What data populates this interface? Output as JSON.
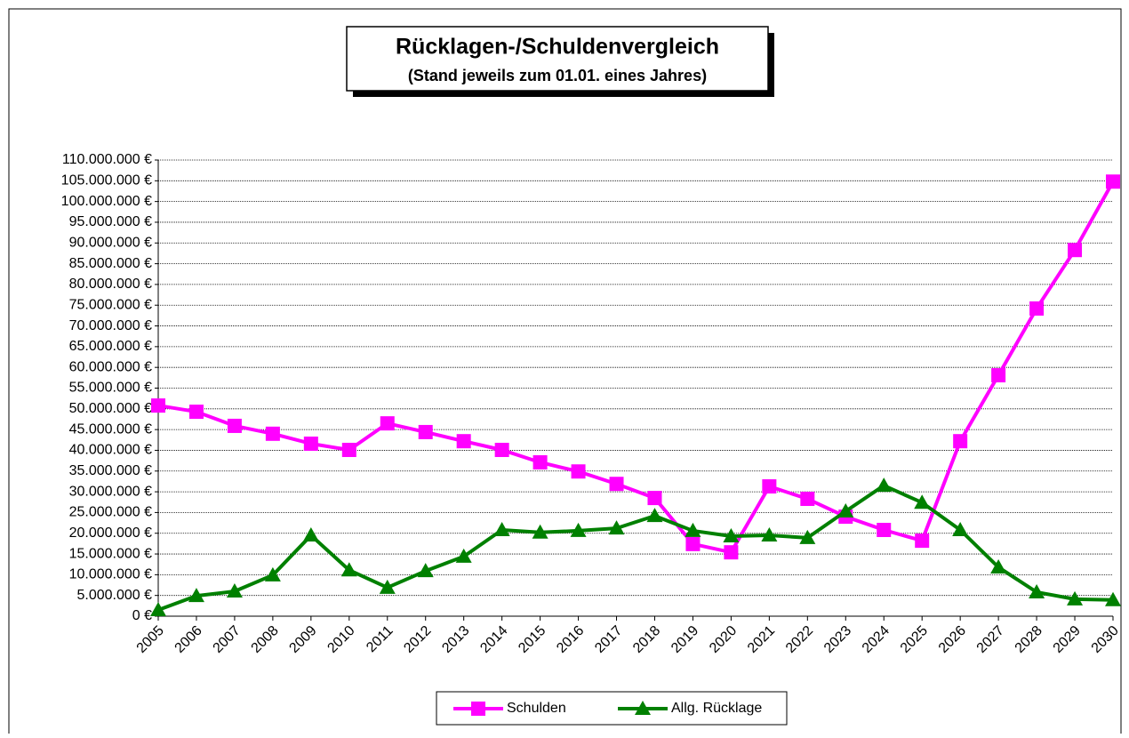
{
  "chart_data": {
    "type": "line",
    "title": "Rücklagen-/Schuldenvergleich",
    "subtitle": "(Stand jeweils zum 01.01. eines Jahres)",
    "categories": [
      "2005",
      "2006",
      "2007",
      "2008",
      "2009",
      "2010",
      "2011",
      "2012",
      "2013",
      "2014",
      "2015",
      "2016",
      "2017",
      "2018",
      "2019",
      "2020",
      "2021",
      "2022",
      "2023",
      "2024",
      "2025",
      "2026",
      "2027",
      "2028",
      "2029",
      "2030"
    ],
    "series": [
      {
        "name": "Schulden",
        "color": "#ff00ff",
        "marker": "square",
        "values": [
          50800000,
          49300000,
          45900000,
          44000000,
          41600000,
          40100000,
          46500000,
          44400000,
          42200000,
          40100000,
          37100000,
          34900000,
          31900000,
          28500000,
          17400000,
          15400000,
          31300000,
          28300000,
          24000000,
          20800000,
          18200000,
          42200000,
          58100000,
          74200000,
          88300000,
          104800000
        ]
      },
      {
        "name": "Allg. Rücklage",
        "color": "#008000",
        "marker": "triangle",
        "values": [
          1500000,
          4900000,
          6000000,
          9900000,
          19500000,
          11100000,
          6900000,
          10900000,
          14400000,
          20800000,
          20200000,
          20600000,
          21200000,
          24200000,
          20600000,
          19300000,
          19500000,
          18900000,
          25300000,
          31500000,
          27400000,
          20800000,
          11800000,
          5800000,
          4100000,
          3900000
        ]
      }
    ],
    "ylim": [
      0,
      110000000
    ],
    "yticks": [
      {
        "value": 0,
        "label": "0 €"
      },
      {
        "value": 5000000,
        "label": "5.000.000 €"
      },
      {
        "value": 10000000,
        "label": "10.000.000 €"
      },
      {
        "value": 15000000,
        "label": "15.000.000 €"
      },
      {
        "value": 20000000,
        "label": "20.000.000 €"
      },
      {
        "value": 25000000,
        "label": "25.000.000 €"
      },
      {
        "value": 30000000,
        "label": "30.000.000 €"
      },
      {
        "value": 35000000,
        "label": "35.000.000 €"
      },
      {
        "value": 40000000,
        "label": "40.000.000 €"
      },
      {
        "value": 45000000,
        "label": "45.000.000 €"
      },
      {
        "value": 50000000,
        "label": "50.000.000 €"
      },
      {
        "value": 55000000,
        "label": "55.000.000 €"
      },
      {
        "value": 60000000,
        "label": "60.000.000 €"
      },
      {
        "value": 65000000,
        "label": "65.000.000 €"
      },
      {
        "value": 70000000,
        "label": "70.000.000 €"
      },
      {
        "value": 75000000,
        "label": "75.000.000 €"
      },
      {
        "value": 80000000,
        "label": "80.000.000 €"
      },
      {
        "value": 85000000,
        "label": "85.000.000 €"
      },
      {
        "value": 90000000,
        "label": "90.000.000 €"
      },
      {
        "value": 95000000,
        "label": "95.000.000 €"
      },
      {
        "value": 100000000,
        "label": "100.000.000 €"
      },
      {
        "value": 105000000,
        "label": "105.000.000 €"
      },
      {
        "value": 110000000,
        "label": "110.000.000 €"
      }
    ],
    "grid": true,
    "legend": "bottom"
  }
}
